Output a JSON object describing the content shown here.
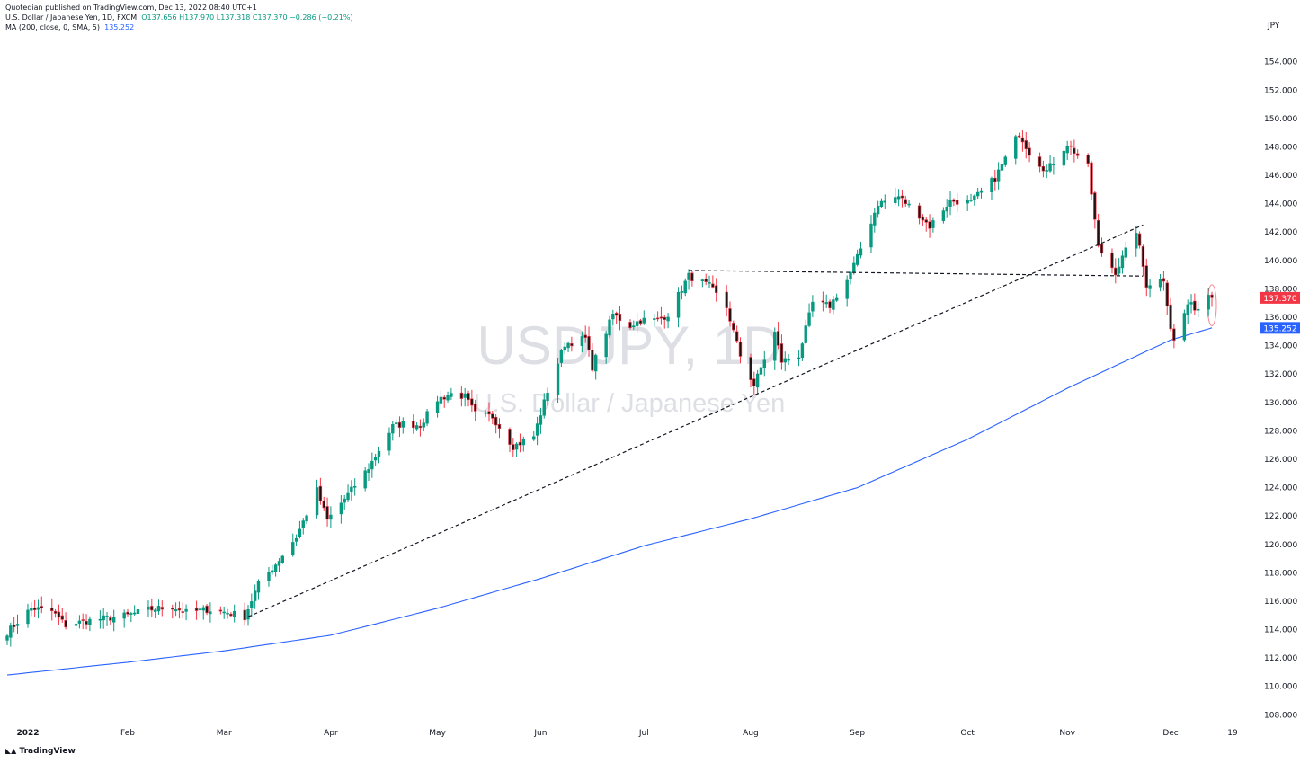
{
  "header": {
    "publisher": "Quotedian published on TradingView.com, Dec 13, 2022 08:40 UTC+1",
    "symbol_line": "U.S. Dollar / Japanese Yen, 1D, FXCM",
    "ohlc": "O137.656  H137.970  L137.318  C137.370  −0.286 (−0.21%)",
    "ma_label": "MA (200, close, 0, SMA, 5)",
    "ma_value": "135.252"
  },
  "footer": {
    "brand": "TradingView"
  },
  "watermark": {
    "big": "USDJPY, 1D",
    "small": "U.S. Dollar / Japanese Yen"
  },
  "colors": {
    "up": "#089981",
    "down": "#f23645",
    "ma": "#2962ff",
    "price_tag": "#f23645",
    "ma_tag": "#2962ff"
  },
  "chart_data": {
    "type": "candlestick",
    "currency_label": "JPY",
    "ylim": [
      106.5,
      156.5
    ],
    "y_ticks": [
      "108.000",
      "110.000",
      "112.000",
      "114.000",
      "116.000",
      "118.000",
      "120.000",
      "122.000",
      "124.000",
      "126.000",
      "128.000",
      "130.000",
      "132.000",
      "134.000",
      "136.000",
      "138.000",
      "140.000",
      "142.000",
      "144.000",
      "146.000",
      "148.000",
      "150.000",
      "152.000",
      "154.000"
    ],
    "x_ticks": [
      {
        "label": "2022",
        "date": "2022-01-03",
        "bold": true
      },
      {
        "label": "Feb",
        "date": "2022-02-01"
      },
      {
        "label": "Mar",
        "date": "2022-03-01"
      },
      {
        "label": "Apr",
        "date": "2022-04-01"
      },
      {
        "label": "May",
        "date": "2022-05-02"
      },
      {
        "label": "Jun",
        "date": "2022-06-01"
      },
      {
        "label": "Jul",
        "date": "2022-07-01"
      },
      {
        "label": "Aug",
        "date": "2022-08-01"
      },
      {
        "label": "Sep",
        "date": "2022-09-01"
      },
      {
        "label": "Oct",
        "date": "2022-10-03"
      },
      {
        "label": "Nov",
        "date": "2022-11-01"
      },
      {
        "label": "Dec",
        "date": "2022-12-01"
      },
      {
        "label": "19",
        "date": "2022-12-19"
      }
    ],
    "last_price": {
      "value": 137.37,
      "label": "137.370"
    },
    "ma_last": {
      "value": 135.252,
      "label": "135.252"
    },
    "close_anchors": [
      [
        "2021-12-28",
        113.8
      ],
      [
        "2022-01-04",
        115.5
      ],
      [
        "2022-01-10",
        115.3
      ],
      [
        "2022-01-14",
        114.3
      ],
      [
        "2022-01-20",
        114.6
      ],
      [
        "2022-01-26",
        114.8
      ],
      [
        "2022-02-01",
        115.0
      ],
      [
        "2022-02-07",
        115.4
      ],
      [
        "2022-02-14",
        115.6
      ],
      [
        "2022-02-18",
        115.2
      ],
      [
        "2022-02-24",
        115.4
      ],
      [
        "2022-03-02",
        115.2
      ],
      [
        "2022-03-07",
        114.9
      ],
      [
        "2022-03-11",
        117.2
      ],
      [
        "2022-03-16",
        118.6
      ],
      [
        "2022-03-22",
        120.5
      ],
      [
        "2022-03-28",
        123.8
      ],
      [
        "2022-03-31",
        121.7
      ],
      [
        "2022-04-06",
        123.5
      ],
      [
        "2022-04-12",
        125.4
      ],
      [
        "2022-04-19",
        128.3
      ],
      [
        "2022-04-22",
        128.5
      ],
      [
        "2022-04-27",
        128.4
      ],
      [
        "2022-05-02",
        130.2
      ],
      [
        "2022-05-06",
        130.6
      ],
      [
        "2022-05-10",
        130.4
      ],
      [
        "2022-05-13",
        129.2
      ],
      [
        "2022-05-18",
        129.0
      ],
      [
        "2022-05-24",
        126.9
      ],
      [
        "2022-05-30",
        127.6
      ],
      [
        "2022-06-03",
        130.8
      ],
      [
        "2022-06-08",
        134.1
      ],
      [
        "2022-06-14",
        134.5
      ],
      [
        "2022-06-16",
        132.5
      ],
      [
        "2022-06-22",
        136.2
      ],
      [
        "2022-06-27",
        135.4
      ],
      [
        "2022-06-30",
        135.8
      ],
      [
        "2022-07-05",
        135.8
      ],
      [
        "2022-07-08",
        136.2
      ],
      [
        "2022-07-14",
        138.9
      ],
      [
        "2022-07-20",
        138.2
      ],
      [
        "2022-07-25",
        136.7
      ],
      [
        "2022-07-29",
        133.3
      ],
      [
        "2022-08-02",
        131.2
      ],
      [
        "2022-08-08",
        134.9
      ],
      [
        "2022-08-10",
        132.9
      ],
      [
        "2022-08-15",
        133.3
      ],
      [
        "2022-08-19",
        137.0
      ],
      [
        "2022-08-24",
        136.8
      ],
      [
        "2022-08-29",
        138.6
      ],
      [
        "2022-09-01",
        140.2
      ],
      [
        "2022-09-07",
        144.0
      ],
      [
        "2022-09-13",
        144.5
      ],
      [
        "2022-09-19",
        143.2
      ],
      [
        "2022-09-22",
        142.4
      ],
      [
        "2022-09-28",
        144.2
      ],
      [
        "2022-10-04",
        144.1
      ],
      [
        "2022-10-11",
        145.8
      ],
      [
        "2022-10-18",
        149.0
      ],
      [
        "2022-10-21",
        147.6
      ],
      [
        "2022-10-26",
        146.3
      ],
      [
        "2022-11-01",
        148.2
      ],
      [
        "2022-11-07",
        146.6
      ],
      [
        "2022-11-10",
        140.9
      ],
      [
        "2022-11-15",
        139.2
      ],
      [
        "2022-11-21",
        142.1
      ],
      [
        "2022-11-24",
        138.3
      ],
      [
        "2022-11-29",
        138.7
      ],
      [
        "2022-12-01",
        135.3
      ],
      [
        "2022-12-02",
        134.3
      ],
      [
        "2022-12-06",
        136.9
      ],
      [
        "2022-12-09",
        136.6
      ],
      [
        "2022-12-12",
        137.65
      ],
      [
        "2022-12-13",
        137.37
      ]
    ],
    "ma_anchors": [
      [
        "2021-12-28",
        110.8
      ],
      [
        "2022-02-01",
        111.7
      ],
      [
        "2022-03-01",
        112.5
      ],
      [
        "2022-04-01",
        113.6
      ],
      [
        "2022-05-02",
        115.5
      ],
      [
        "2022-06-01",
        117.6
      ],
      [
        "2022-07-01",
        119.9
      ],
      [
        "2022-08-01",
        121.8
      ],
      [
        "2022-09-01",
        124.0
      ],
      [
        "2022-10-03",
        127.4
      ],
      [
        "2022-11-01",
        131.0
      ],
      [
        "2022-12-01",
        134.4
      ],
      [
        "2022-12-13",
        135.252
      ]
    ],
    "trendlines": [
      {
        "from": [
          "2022-03-08",
          114.9
        ],
        "to": [
          "2022-11-23",
          142.5
        ]
      },
      {
        "from": [
          "2022-07-14",
          139.3
        ],
        "to": [
          "2022-11-23",
          138.9
        ]
      }
    ],
    "highlight": {
      "date": "2022-12-13",
      "low": 135.4,
      "high": 138.3
    }
  }
}
